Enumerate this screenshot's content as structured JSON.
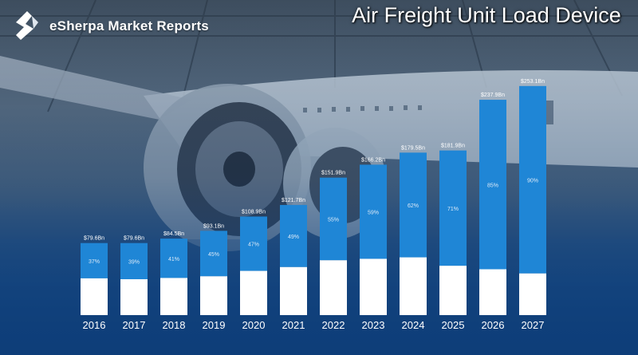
{
  "header": {
    "brand": "eSherpa Market Reports",
    "logo_icon": "esherpa-logo-icon"
  },
  "colors": {
    "top_segment": "#1f86d6",
    "bottom_segment": "#ffffff"
  },
  "chart_data": {
    "type": "bar",
    "title": "Air Freight Unit Load Device",
    "categories": [
      "2016",
      "2017",
      "2018",
      "2019",
      "2020",
      "2021",
      "2022",
      "2023",
      "2024",
      "2025",
      "2026",
      "2027"
    ],
    "values": [
      79.6,
      79.6,
      84.5,
      93.1,
      108.9,
      121.7,
      151.9,
      166.2,
      179.5,
      181.9,
      237.9,
      253.1
    ],
    "value_labels": [
      "$79.6Bn",
      "$79.6Bn",
      "$84.5Bn",
      "$93.1Bn",
      "$108.9Bn",
      "$121.7Bn",
      "$151.9Bn",
      "$166.2Bn",
      "$179.5Bn",
      "$181.9Bn",
      "$237.9Bn",
      "$253.1Bn"
    ],
    "segment_percent": [
      37,
      39,
      41,
      45,
      47,
      49,
      55,
      59,
      62,
      71,
      85,
      90
    ],
    "segment_labels": [
      "37%",
      "39%",
      "41%",
      "45%",
      "47%",
      "49%",
      "55%",
      "59%",
      "62%",
      "71%",
      "85%",
      "90%"
    ],
    "stacked": true,
    "ylim": [
      0,
      260
    ],
    "grid": false,
    "legend": "none"
  }
}
